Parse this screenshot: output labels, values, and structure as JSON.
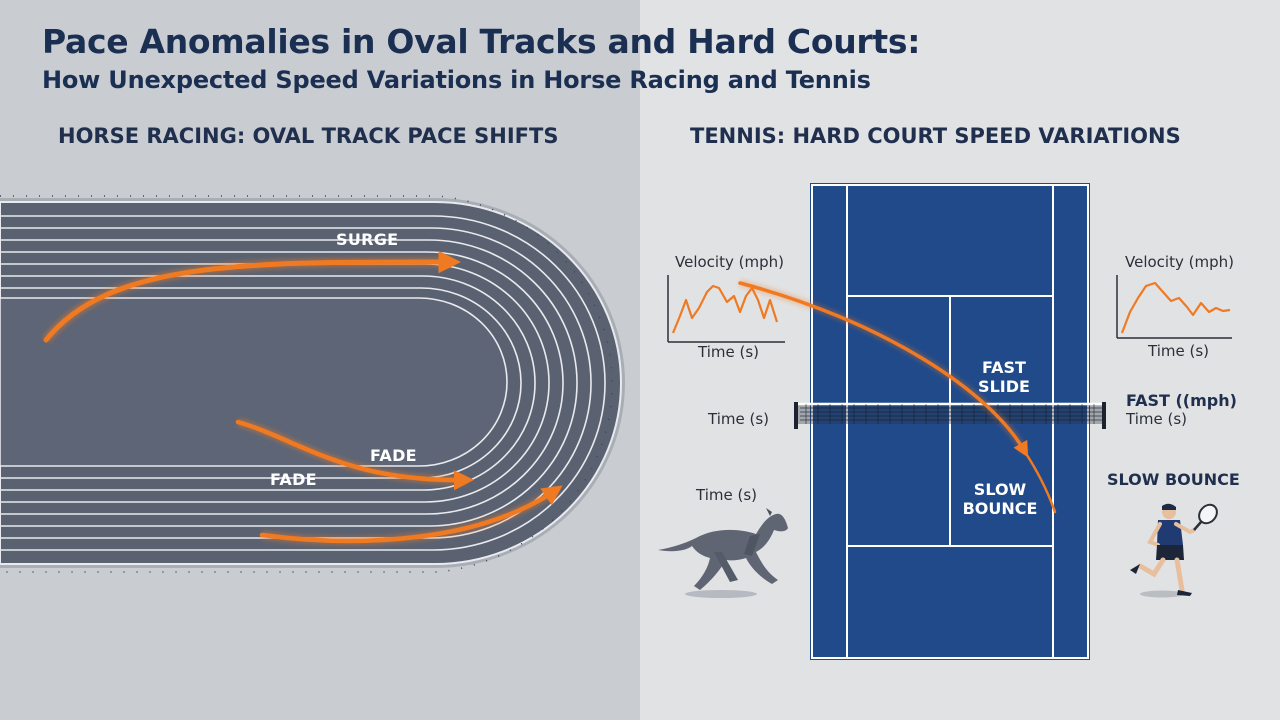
{
  "title": {
    "line1": "Pace Anomalies in Oval Tracks and Hard Courts:",
    "line2": "How Unexpected Speed Variations in Horse Racing and Tennis"
  },
  "horse_racing": {
    "heading": "HORSE RACING: OVAL TRACK PACE SHIFTS",
    "surge_label": "SURGE",
    "fade_label_1": "FADE",
    "fade_label_2": "FADE",
    "time_label": "Time (s)"
  },
  "tennis": {
    "heading": "TENNIS: HARD COURT SPEED VARIATIONS",
    "fast_slide_line1": "FAST",
    "fast_slide_line2": "SLIDE",
    "slow_bounce_line1": "SLOW",
    "slow_bounce_line2": "BOUNCE",
    "fast_mph_label": "FAST ((mph)",
    "time_label_right": "Time (s)",
    "time_label_left": "Time (s)",
    "slow_bounce_label": "SLOW BOUNCE"
  },
  "charts": {
    "left": {
      "ylabel": "Velocity (mph)",
      "xlabel": "Time (s)"
    },
    "right": {
      "ylabel": "Velocity (mph)",
      "xlabel": "Time (s)"
    }
  },
  "colors": {
    "accent": "#f07a22",
    "court_blue": "#204a8a",
    "track_dark": "#5a6272",
    "title_navy": "#1b2f52"
  },
  "icons": [
    "horse-icon",
    "tennis-player-icon"
  ]
}
